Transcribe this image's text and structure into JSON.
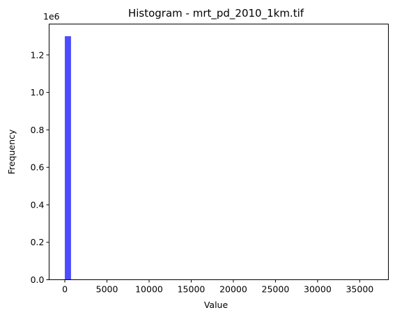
{
  "chart_data": {
    "type": "bar",
    "title": "Histogram - mrt_pd_2010_1km.tif",
    "xlabel": "Value",
    "ylabel": "Frequency",
    "y_offset_label": "1e6",
    "xlim": [
      -1865,
      38400
    ],
    "ylim": [
      0,
      1365000
    ],
    "x_ticks": [
      0,
      5000,
      10000,
      15000,
      20000,
      25000,
      30000,
      35000
    ],
    "x_tick_labels": [
      "0",
      "5000",
      "10000",
      "15000",
      "20000",
      "25000",
      "30000",
      "35000"
    ],
    "y_ticks": [
      0,
      200000,
      400000,
      600000,
      800000,
      1000000,
      1200000
    ],
    "y_tick_labels": [
      "0.0",
      "0.2",
      "0.4",
      "0.6",
      "0.8",
      "1.0",
      "1.2"
    ],
    "bins": [
      {
        "x0": 0,
        "x1": 735,
        "value": 1300000
      }
    ],
    "bar_color": "#4d4dff",
    "grid": false,
    "legend": false
  }
}
